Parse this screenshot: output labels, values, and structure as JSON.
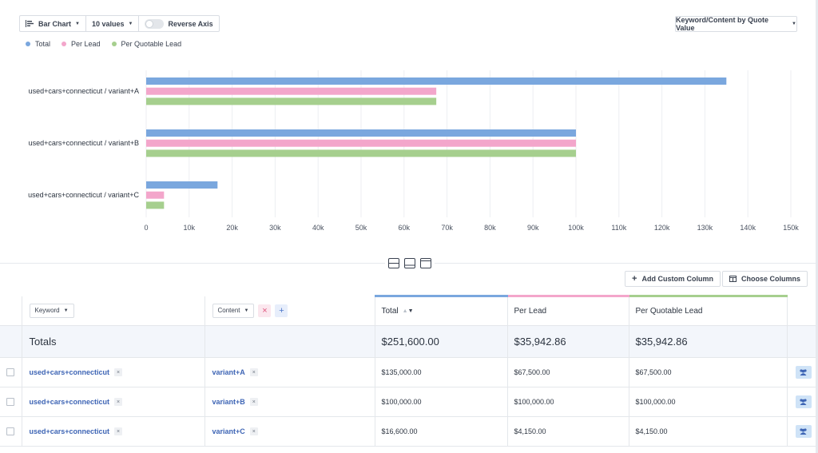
{
  "toolbar": {
    "chart_type": "Bar Chart",
    "values_count": "10 values",
    "reverse_axis": "Reverse Axis"
  },
  "sort_dropdown": "Keyword/Content by Quote Value",
  "legend": [
    {
      "label": "Total",
      "color": "#7aa7de"
    },
    {
      "label": "Per Lead",
      "color": "#f3a6cb"
    },
    {
      "label": "Per Quotable Lead",
      "color": "#a6cf8e"
    }
  ],
  "chart_data": {
    "type": "bar",
    "orientation": "horizontal",
    "categories": [
      "used+cars+connecticut / variant+A",
      "used+cars+connecticut / variant+B",
      "used+cars+connecticut / variant+C"
    ],
    "series": [
      {
        "name": "Total",
        "color": "#7aa7de",
        "values": [
          135000,
          100000,
          16600
        ]
      },
      {
        "name": "Per Lead",
        "color": "#f3a6cb",
        "values": [
          67500,
          100000,
          4150
        ]
      },
      {
        "name": "Per Quotable Lead",
        "color": "#a6cf8e",
        "values": [
          67500,
          100000,
          4150
        ]
      }
    ],
    "xlim": [
      0,
      150000
    ],
    "xticks": [
      0,
      10000,
      20000,
      30000,
      40000,
      50000,
      60000,
      70000,
      80000,
      90000,
      100000,
      110000,
      120000,
      130000,
      140000,
      150000
    ],
    "xtick_labels": [
      "0",
      "10k",
      "20k",
      "30k",
      "40k",
      "50k",
      "60k",
      "70k",
      "80k",
      "90k",
      "100k",
      "110k",
      "120k",
      "130k",
      "140k",
      "150k"
    ],
    "grid": true,
    "title": "",
    "xlabel": "",
    "ylabel": ""
  },
  "actions": {
    "add_custom_column": "Add Custom Column",
    "choose_columns": "Choose Columns"
  },
  "table": {
    "keyword_filter": "Keyword",
    "content_filter": "Content",
    "columns": {
      "total": "Total",
      "per_lead": "Per Lead",
      "per_quotable_lead": "Per Quotable Lead"
    },
    "totals": {
      "label": "Totals",
      "total": "$251,600.00",
      "per_lead": "$35,942.86",
      "per_quotable_lead": "$35,942.86"
    },
    "rows": [
      {
        "keyword": "used+cars+connecticut",
        "content": "variant+A",
        "total": "$135,000.00",
        "per_lead": "$67,500.00",
        "per_quotable_lead": "$67,500.00"
      },
      {
        "keyword": "used+cars+connecticut",
        "content": "variant+B",
        "total": "$100,000.00",
        "per_lead": "$100,000.00",
        "per_quotable_lead": "$100,000.00"
      },
      {
        "keyword": "used+cars+connecticut",
        "content": "variant+C",
        "total": "$16,600.00",
        "per_lead": "$4,150.00",
        "per_quotable_lead": "$4,150.00"
      }
    ]
  }
}
